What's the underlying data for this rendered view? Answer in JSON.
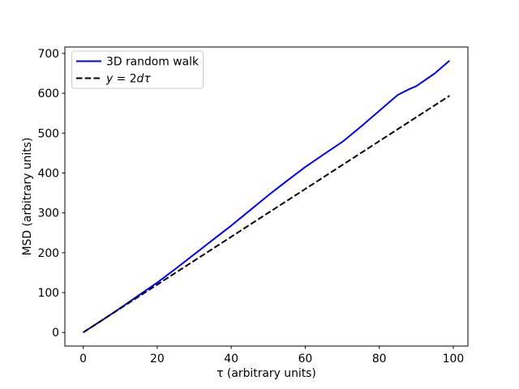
{
  "chart_data": {
    "type": "line",
    "title": "",
    "xlabel": "τ (arbitrary units)",
    "ylabel": "MSD (arbitrary units)",
    "xticks": [
      0,
      20,
      40,
      60,
      80,
      100
    ],
    "yticks": [
      0,
      100,
      200,
      300,
      400,
      500,
      600,
      700
    ],
    "xlim": [
      -4.95,
      103.95
    ],
    "ylim": [
      -34.1,
      716.1
    ],
    "grid": false,
    "background_color": "#ffffff",
    "axis_color": "#000000",
    "legend": {
      "position": "upper left",
      "border_color": "#cccccc",
      "fill_color": "#ffffff"
    },
    "series": [
      {
        "name": "3D random walk",
        "color": "#0000ff",
        "line_style": "solid",
        "x": [
          0,
          5,
          10,
          15,
          20,
          25,
          30,
          35,
          40,
          45,
          50,
          55,
          60,
          65,
          70,
          75,
          80,
          85,
          88,
          90,
          95,
          99
        ],
        "y": [
          0,
          30,
          61,
          93,
          125,
          160,
          196,
          232,
          268,
          306,
          344,
          380,
          415,
          447,
          478,
          516,
          556,
          596,
          610,
          618,
          650,
          682
        ]
      },
      {
        "name": "y = 2dτ",
        "color": "#000000",
        "line_style": "dashed",
        "label_parts": [
          {
            "text": "y",
            "italic": true
          },
          {
            "text": " = 2",
            "italic": false
          },
          {
            "text": "d",
            "italic": true
          },
          {
            "text": "τ",
            "italic": true
          }
        ],
        "x": [
          0,
          99
        ],
        "y": [
          0,
          594
        ]
      }
    ]
  }
}
